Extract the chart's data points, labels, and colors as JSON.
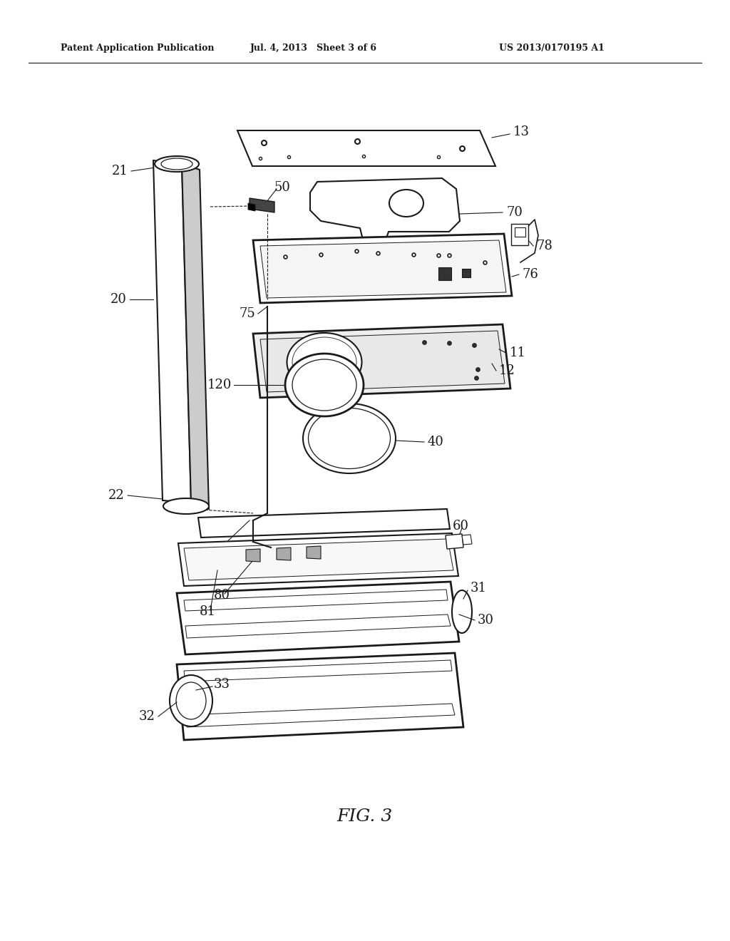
{
  "title": "FIG. 3",
  "header_left": "Patent Application Publication",
  "header_center": "Jul. 4, 2013   Sheet 3 of 6",
  "header_right": "US 2013/0170195 A1",
  "bg_color": "#ffffff",
  "line_color": "#1a1a1a",
  "fig_width": 10.24,
  "fig_height": 13.2,
  "dpi": 100
}
